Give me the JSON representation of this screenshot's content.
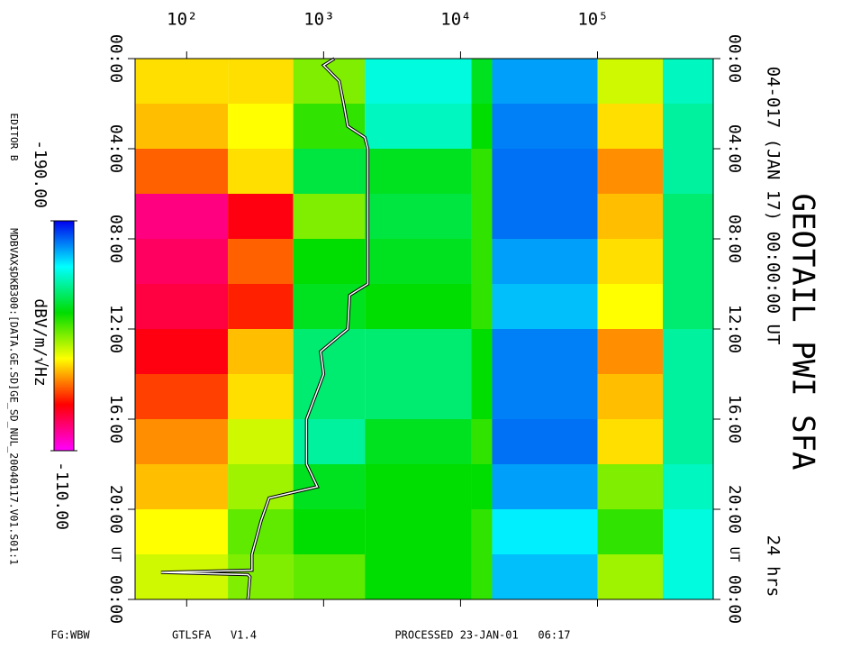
{
  "chart_data": {
    "type": "spectrogram",
    "title": "GEOTAIL PWI SFA",
    "subtitle": "04-017 (JAN 17) 00:00:00 UT",
    "duration": "24 hrs",
    "x_log": true,
    "xlim": [
      42,
      700000
    ],
    "xticks": [
      {
        "value": 100,
        "label": "10²"
      },
      {
        "value": 1000,
        "label": "10³"
      },
      {
        "value": 10000,
        "label": "10⁴"
      },
      {
        "value": 100000,
        "label": "10⁵"
      }
    ],
    "ylim": [
      0,
      24
    ],
    "yticks": [
      {
        "value": 0,
        "label": "00:00"
      },
      {
        "value": 4,
        "label": "04:00"
      },
      {
        "value": 8,
        "label": "08:00"
      },
      {
        "value": 12,
        "label": "12:00"
      },
      {
        "value": 16,
        "label": "16:00"
      },
      {
        "value": 20,
        "label": "20:00"
      },
      {
        "value": 24,
        "label": "00:00"
      }
    ],
    "time_label": "UT",
    "time_edges": [
      0,
      2,
      4,
      6,
      8,
      10,
      12,
      14,
      16,
      18,
      20,
      22,
      24
    ],
    "frequency_edges": [
      42,
      200,
      600,
      2000,
      12000,
      17000,
      100000,
      300000,
      700000
    ],
    "values": [
      [
        -140,
        -140,
        -150,
        -172,
        -160,
        -180,
        -145,
        -170
      ],
      [
        -138,
        -142,
        -155,
        -170,
        -158,
        -182,
        -140,
        -168
      ],
      [
        -132,
        -140,
        -162,
        -160,
        -155,
        -183,
        -135,
        -168
      ],
      [
        -118,
        -125,
        -150,
        -162,
        -155,
        -183,
        -138,
        -165
      ],
      [
        -120,
        -132,
        -158,
        -160,
        -155,
        -180,
        -140,
        -165
      ],
      [
        -122,
        -128,
        -160,
        -158,
        -155,
        -178,
        -142,
        -165
      ],
      [
        -125,
        -138,
        -165,
        -165,
        -158,
        -182,
        -135,
        -168
      ],
      [
        -130,
        -140,
        -165,
        -165,
        -158,
        -182,
        -138,
        -168
      ],
      [
        -135,
        -145,
        -168,
        -160,
        -155,
        -183,
        -140,
        -168
      ],
      [
        -138,
        -148,
        -160,
        -158,
        -158,
        -180,
        -150,
        -170
      ],
      [
        -142,
        -152,
        -158,
        -158,
        -155,
        -175,
        -155,
        -172
      ],
      [
        -145,
        -150,
        -152,
        -158,
        -155,
        -178,
        -148,
        -172
      ]
    ],
    "colorbar": {
      "label": "dBV/m/√Hz",
      "zlim": [
        -190,
        -110
      ],
      "ticks": [
        {
          "value": -190,
          "label": "-190.00"
        },
        {
          "value": -110,
          "label": "-110.00"
        }
      ],
      "colors": [
        "#0000ee",
        "#00ffff",
        "#00dd00",
        "#ffff00",
        "#ff0000",
        "#ff00ff"
      ]
    },
    "trace": {
      "color": "#ffffff",
      "time": [
        0,
        0.3,
        1,
        2,
        3,
        3.5,
        4,
        6,
        8,
        10,
        10.5,
        12,
        13,
        14,
        16,
        18,
        19,
        19.5,
        20.5,
        22,
        22.7,
        22.8,
        22.9,
        23,
        24
      ],
      "frequency": [
        1200,
        1000,
        1300,
        1400,
        1500,
        2000,
        2100,
        2100,
        2100,
        2100,
        1550,
        1500,
        950,
        1000,
        750,
        750,
        900,
        400,
        350,
        300,
        300,
        65,
        280,
        290,
        280
      ]
    }
  },
  "footer": {
    "editor": "EDITOR B",
    "file": "MDBVAX$DKB300:[DATA.GE.SD]GE_SD_NUL_20040117.V01.S01:1",
    "fg": "FG:WBW",
    "program": "GTLSFA   V1.4",
    "processed": "PROCESSED 23-JAN-01   06:17"
  }
}
